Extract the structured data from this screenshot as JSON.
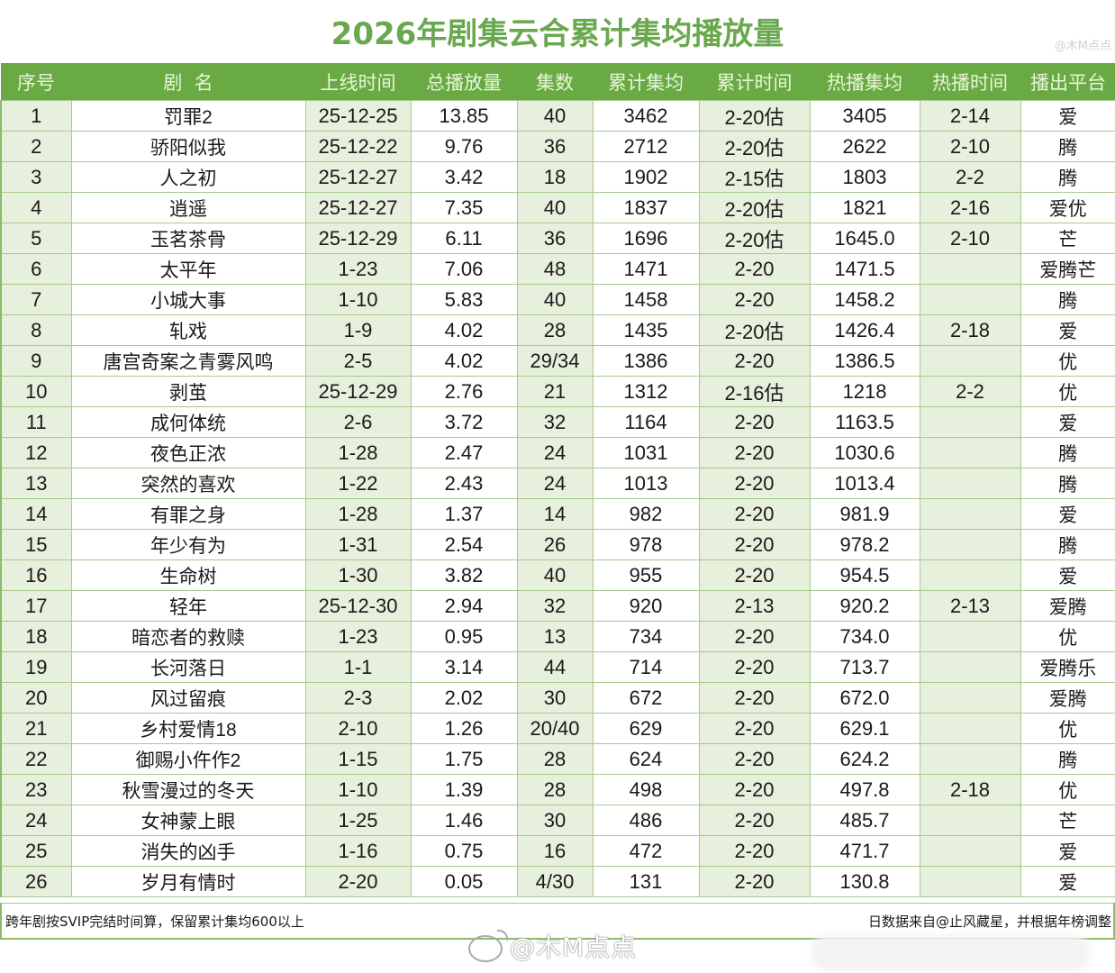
{
  "title": "2026年剧集云合累计集均播放量",
  "top_right_watermark": "@木M点点",
  "colors": {
    "title": "#6aa84f",
    "header_bg": "#6aaa45",
    "header_text": "#e8f5d8",
    "shaded_cell": "#e6f0dc",
    "grid_line": "#a7c98e"
  },
  "table": {
    "headers": [
      "序号",
      "剧  名",
      "上线时间",
      "总播放量",
      "集数",
      "累计集均",
      "累计时间",
      "热播集均",
      "热播时间",
      "播出平台"
    ],
    "rows": [
      {
        "rank": "1",
        "name": "罚罪2",
        "launch": "25-12-25",
        "total": "13.85",
        "episodes": "40",
        "cum_avg": "3462",
        "cum_time": "2-20估",
        "hot_avg": "3405",
        "hot_time": "2-14",
        "platform": "爱"
      },
      {
        "rank": "2",
        "name": "骄阳似我",
        "launch": "25-12-22",
        "total": "9.76",
        "episodes": "36",
        "cum_avg": "2712",
        "cum_time": "2-20估",
        "hot_avg": "2622",
        "hot_time": "2-10",
        "platform": "腾"
      },
      {
        "rank": "3",
        "name": "人之初",
        "launch": "25-12-27",
        "total": "3.42",
        "episodes": "18",
        "cum_avg": "1902",
        "cum_time": "2-15估",
        "hot_avg": "1803",
        "hot_time": "2-2",
        "platform": "腾"
      },
      {
        "rank": "4",
        "name": "逍遥",
        "launch": "25-12-27",
        "total": "7.35",
        "episodes": "40",
        "cum_avg": "1837",
        "cum_time": "2-20估",
        "hot_avg": "1821",
        "hot_time": "2-16",
        "platform": "爱优"
      },
      {
        "rank": "5",
        "name": "玉茗茶骨",
        "launch": "25-12-29",
        "total": "6.11",
        "episodes": "36",
        "cum_avg": "1696",
        "cum_time": "2-20估",
        "hot_avg": "1645.0",
        "hot_time": "2-10",
        "platform": "芒"
      },
      {
        "rank": "6",
        "name": "太平年",
        "launch": "1-23",
        "total": "7.06",
        "episodes": "48",
        "cum_avg": "1471",
        "cum_time": "2-20",
        "hot_avg": "1471.5",
        "hot_time": "",
        "platform": "爱腾芒"
      },
      {
        "rank": "7",
        "name": "小城大事",
        "launch": "1-10",
        "total": "5.83",
        "episodes": "40",
        "cum_avg": "1458",
        "cum_time": "2-20",
        "hot_avg": "1458.2",
        "hot_time": "",
        "platform": "腾"
      },
      {
        "rank": "8",
        "name": "轧戏",
        "launch": "1-9",
        "total": "4.02",
        "episodes": "28",
        "cum_avg": "1435",
        "cum_time": "2-20估",
        "hot_avg": "1426.4",
        "hot_time": "2-18",
        "platform": "爱"
      },
      {
        "rank": "9",
        "name": "唐宫奇案之青雾风鸣",
        "launch": "2-5",
        "total": "4.02",
        "episodes": "29/34",
        "cum_avg": "1386",
        "cum_time": "2-20",
        "hot_avg": "1386.5",
        "hot_time": "",
        "platform": "优"
      },
      {
        "rank": "10",
        "name": "剥茧",
        "launch": "25-12-29",
        "total": "2.76",
        "episodes": "21",
        "cum_avg": "1312",
        "cum_time": "2-16估",
        "hot_avg": "1218",
        "hot_time": "2-2",
        "platform": "优"
      },
      {
        "rank": "11",
        "name": "成何体统",
        "launch": "2-6",
        "total": "3.72",
        "episodes": "32",
        "cum_avg": "1164",
        "cum_time": "2-20",
        "hot_avg": "1163.5",
        "hot_time": "",
        "platform": "爱"
      },
      {
        "rank": "12",
        "name": "夜色正浓",
        "launch": "1-28",
        "total": "2.47",
        "episodes": "24",
        "cum_avg": "1031",
        "cum_time": "2-20",
        "hot_avg": "1030.6",
        "hot_time": "",
        "platform": "腾"
      },
      {
        "rank": "13",
        "name": "突然的喜欢",
        "launch": "1-22",
        "total": "2.43",
        "episodes": "24",
        "cum_avg": "1013",
        "cum_time": "2-20",
        "hot_avg": "1013.4",
        "hot_time": "",
        "platform": "腾"
      },
      {
        "rank": "14",
        "name": "有罪之身",
        "launch": "1-28",
        "total": "1.37",
        "episodes": "14",
        "cum_avg": "982",
        "cum_time": "2-20",
        "hot_avg": "981.9",
        "hot_time": "",
        "platform": "爱"
      },
      {
        "rank": "15",
        "name": "年少有为",
        "launch": "1-31",
        "total": "2.54",
        "episodes": "26",
        "cum_avg": "978",
        "cum_time": "2-20",
        "hot_avg": "978.2",
        "hot_time": "",
        "platform": "腾"
      },
      {
        "rank": "16",
        "name": "生命树",
        "launch": "1-30",
        "total": "3.82",
        "episodes": "40",
        "cum_avg": "955",
        "cum_time": "2-20",
        "hot_avg": "954.5",
        "hot_time": "",
        "platform": "爱"
      },
      {
        "rank": "17",
        "name": "轻年",
        "launch": "25-12-30",
        "total": "2.94",
        "episodes": "32",
        "cum_avg": "920",
        "cum_time": "2-13",
        "hot_avg": "920.2",
        "hot_time": "2-13",
        "platform": "爱腾"
      },
      {
        "rank": "18",
        "name": "暗恋者的救赎",
        "launch": "1-23",
        "total": "0.95",
        "episodes": "13",
        "cum_avg": "734",
        "cum_time": "2-20",
        "hot_avg": "734.0",
        "hot_time": "",
        "platform": "优"
      },
      {
        "rank": "19",
        "name": "长河落日",
        "launch": "1-1",
        "total": "3.14",
        "episodes": "44",
        "cum_avg": "714",
        "cum_time": "2-20",
        "hot_avg": "713.7",
        "hot_time": "",
        "platform": "爱腾乐"
      },
      {
        "rank": "20",
        "name": "风过留痕",
        "launch": "2-3",
        "total": "2.02",
        "episodes": "30",
        "cum_avg": "672",
        "cum_time": "2-20",
        "hot_avg": "672.0",
        "hot_time": "",
        "platform": "爱腾"
      },
      {
        "rank": "21",
        "name": "乡村爱情18",
        "launch": "2-10",
        "total": "1.26",
        "episodes": "20/40",
        "cum_avg": "629",
        "cum_time": "2-20",
        "hot_avg": "629.1",
        "hot_time": "",
        "platform": "优"
      },
      {
        "rank": "22",
        "name": "御赐小仵作2",
        "launch": "1-15",
        "total": "1.75",
        "episodes": "28",
        "cum_avg": "624",
        "cum_time": "2-20",
        "hot_avg": "624.2",
        "hot_time": "",
        "platform": "腾"
      },
      {
        "rank": "23",
        "name": "秋雪漫过的冬天",
        "launch": "1-10",
        "total": "1.39",
        "episodes": "28",
        "cum_avg": "498",
        "cum_time": "2-20",
        "hot_avg": "497.8",
        "hot_time": "2-18",
        "platform": "优"
      },
      {
        "rank": "24",
        "name": "女神蒙上眼",
        "launch": "1-25",
        "total": "1.46",
        "episodes": "30",
        "cum_avg": "486",
        "cum_time": "2-20",
        "hot_avg": "485.7",
        "hot_time": "",
        "platform": "芒"
      },
      {
        "rank": "25",
        "name": "消失的凶手",
        "launch": "1-16",
        "total": "0.75",
        "episodes": "16",
        "cum_avg": "472",
        "cum_time": "2-20",
        "hot_avg": "471.7",
        "hot_time": "",
        "platform": "爱"
      },
      {
        "rank": "26",
        "name": "岁月有情时",
        "launch": "2-20",
        "total": "0.05",
        "episodes": "4/30",
        "cum_avg": "131",
        "cum_time": "2-20",
        "hot_avg": "130.8",
        "hot_time": "",
        "platform": "爱"
      }
    ]
  },
  "footer": {
    "left_note": "跨年剧按SVIP完结时间算，保留累计集均600以上",
    "right_note": "日数据来自@止风藏星，并根据年榜调整"
  },
  "watermark": "@木M点点"
}
